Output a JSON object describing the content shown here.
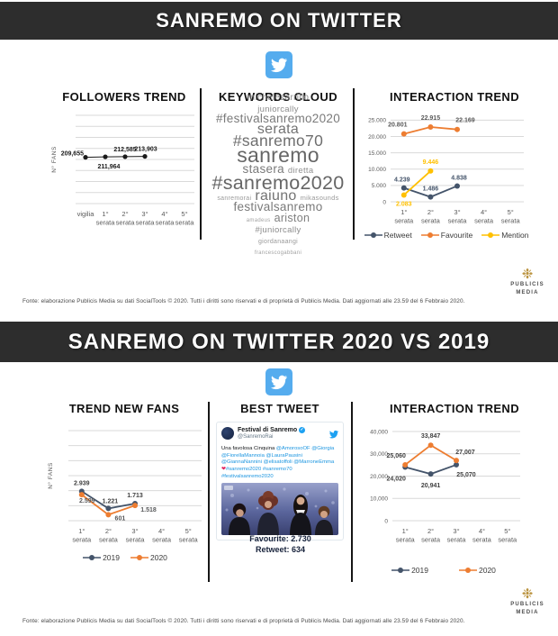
{
  "colors": {
    "header_bg": "#2d2d2d",
    "twitter_blue": "#55acee",
    "navy": "#44546a",
    "orange": "#ed7d31",
    "yellow": "#ffc000",
    "grid": "#d9d9d9"
  },
  "footer_note": "Fonte: elaborazione Publicis Media su dati SocialTools © 2020. Tutti i diritti sono riservati e di proprietà di Publicis Media. Dati aggiornati alle 23.59 del 6 Febbraio 2020.",
  "logo": {
    "line1": "PUBLICIS",
    "line2": "MEDIA"
  },
  "top": {
    "header": "SANREMO ON TWITTER",
    "panels": {
      "followers": {
        "title": "FOLLOWERS TREND"
      },
      "keywords": {
        "title": "KEYWORDS CLOUD",
        "rows": [
          [
            {
              "t": "michelezarrillo",
              "s": 10,
              "c": "#8c8c8c"
            }
          ],
          [
            {
              "t": "juniorcally",
              "s": 9.5,
              "c": "#8c8c8c"
            }
          ],
          [
            {
              "t": "#festivalsanremo2020",
              "s": 13.5,
              "c": "#7a7a7a"
            }
          ],
          [
            {
              "t": "serata",
              "s": 16,
              "c": "#737373"
            }
          ],
          [
            {
              "t": "#sanremo70",
              "s": 17.5,
              "c": "#6e6e6e"
            }
          ],
          [
            {
              "t": "sanremo",
              "s": 23,
              "c": "#666666"
            }
          ],
          [
            {
              "t": "stasera",
              "s": 13.5,
              "c": "#7a7a7a"
            },
            {
              "t": "diretta",
              "s": 9.5,
              "c": "#919191"
            }
          ],
          [
            {
              "t": "#sanremo2020",
              "s": 21.5,
              "c": "#666666"
            }
          ],
          [
            {
              "t": "sanremorai",
              "s": 7,
              "c": "#9a9a9a"
            },
            {
              "t": "raiuno",
              "s": 16,
              "c": "#737373"
            },
            {
              "t": "mikasounds",
              "s": 7.5,
              "c": "#9a9a9a"
            }
          ],
          [
            {
              "t": "festivalsanremo",
              "s": 13.5,
              "c": "#7a7a7a"
            }
          ],
          [
            {
              "t": "amadeus",
              "s": 6,
              "c": "#a3a3a3"
            },
            {
              "t": "ariston",
              "s": 12.5,
              "c": "#7f7f7f"
            }
          ],
          [
            {
              "t": "#juniorcally",
              "s": 9.5,
              "c": "#8c8c8c"
            }
          ],
          [
            {
              "t": "giordanaangi",
              "s": 7,
              "c": "#9a9a9a"
            }
          ],
          [
            {
              "t": "francescogabbani",
              "s": 6,
              "c": "#a3a3a3"
            }
          ]
        ]
      },
      "interaction": {
        "title": "INTERACTION TREND"
      }
    }
  },
  "bottom": {
    "header": "SANREMO ON TWITTER 2020 VS 2019",
    "panels": {
      "newfans": {
        "title": "TREND NEW FANS"
      },
      "best_tweet": {
        "title": "BEST TWEET",
        "account_name": "Festival di Sanremo",
        "account_handle": "@SanremoRai",
        "text_segments": [
          {
            "t": "Una favolosa Cinquina ",
            "style": ""
          },
          {
            "t": "@AmorosoOF @Giorgia @FiorellaMannoia @LauraPausini @GiannaNannini @elisatoffoli @MarroneEmma ",
            "style": "link"
          },
          {
            "t": "❤",
            "style": "heart"
          },
          {
            "t": "#sanremo2020 #sanremo70 #festivalsanremo2020",
            "style": "link"
          }
        ],
        "favourite_label": "Favourite: 2.730",
        "retweet_label": "Retweet: 634"
      },
      "interaction": {
        "title": "INTERACTION TREND"
      }
    }
  },
  "chart_data": [
    {
      "type": "line",
      "title": "FOLLOWERS TREND",
      "ylabel": "N° FANS",
      "categories": [
        [
          "vigilia"
        ],
        [
          "1°",
          "serata"
        ],
        [
          "2°",
          "serata"
        ],
        [
          "3°",
          "serata"
        ],
        [
          "4°",
          "serata"
        ],
        [
          "5°",
          "serata"
        ]
      ],
      "ylim": [
        0,
        400000
      ],
      "grid_step": 50000,
      "legend": false,
      "series": [
        {
          "name": "N° Fans",
          "color": "#1a1a1a",
          "lw": 1,
          "r": 2.6,
          "values": [
            209655,
            211964,
            212585,
            213903,
            null,
            null
          ],
          "labels": [
            "209,655",
            "211,964",
            "212,585",
            "213,903",
            null,
            null
          ],
          "offsets": [
            [
              -2,
              -2,
              "end"
            ],
            [
              4,
              13,
              "middle"
            ],
            [
              0,
              -6,
              "middle"
            ],
            [
              1,
              -6,
              "middle"
            ]
          ],
          "label_color": "#1a1a1a"
        }
      ]
    },
    {
      "type": "line",
      "title": "INTERACTION TREND",
      "categories": [
        [
          "1°",
          "serata"
        ],
        [
          "2°",
          "serata"
        ],
        [
          "3°",
          "serata"
        ],
        [
          "4°",
          "serata"
        ],
        [
          "5°",
          "serata"
        ]
      ],
      "ylim": [
        0,
        26500
      ],
      "grid_step": 5000,
      "legend": true,
      "yticks": [
        {
          "v": 25000,
          "t": "25.000"
        },
        {
          "v": 20000,
          "t": "20.000"
        },
        {
          "v": 15000,
          "t": "15.000"
        },
        {
          "v": 10000,
          "t": "10.000"
        },
        {
          "v": 5000,
          "t": "5.000"
        },
        {
          "v": 0,
          "t": "0"
        }
      ],
      "series": [
        {
          "name": "Retweet",
          "color": "#44546a",
          "values": [
            4239,
            1486,
            4838,
            null,
            null
          ],
          "labels": [
            "4.239",
            "1.486",
            "4.838"
          ],
          "offsets": [
            [
              -2,
              -7,
              "middle"
            ],
            [
              0,
              -7,
              "middle"
            ],
            [
              2,
              -7,
              "middle"
            ]
          ],
          "label_color": "#44546a"
        },
        {
          "name": "Favourite",
          "color": "#ed7d31",
          "values": [
            20801,
            22915,
            22169,
            null,
            null
          ],
          "labels": [
            "20.801",
            "22.915",
            "22.169"
          ],
          "offsets": [
            [
              -7,
              -8,
              "middle"
            ],
            [
              0,
              -8,
              "middle"
            ],
            [
              9,
              -8,
              "middle"
            ]
          ],
          "label_color": "#595959"
        },
        {
          "name": "Mention",
          "color": "#ffc000",
          "values": [
            2083,
            9446,
            null,
            null,
            null
          ],
          "labels": [
            "2.083",
            "9.446"
          ],
          "offsets": [
            [
              0,
              12,
              "middle"
            ],
            [
              0,
              -8,
              "middle"
            ]
          ],
          "label_color": "#ffc000"
        }
      ]
    },
    {
      "type": "line",
      "title": "TREND NEW FANS",
      "ylabel": "N° FANS",
      "categories": [
        [
          "1°",
          "serata"
        ],
        [
          "2°",
          "serata"
        ],
        [
          "3°",
          "serata"
        ],
        [
          "4°",
          "serata"
        ],
        [
          "5°",
          "serata"
        ]
      ],
      "ylim": [
        0,
        9000
      ],
      "grid_step": 1500,
      "legend": true,
      "series": [
        {
          "name": "2019",
          "color": "#44546a",
          "values": [
            2939,
            1221,
            1713,
            null,
            null
          ],
          "labels": [
            "2.939",
            "1.221",
            "1.713"
          ],
          "offsets": [
            [
              0,
              -7,
              "middle"
            ],
            [
              2,
              -6,
              "middle"
            ],
            [
              0,
              -7,
              "middle"
            ]
          ],
          "label_color": "#404040"
        },
        {
          "name": "2020",
          "color": "#ed7d31",
          "values": [
            2599,
            601,
            1518,
            null,
            null
          ],
          "labels": [
            "2.599",
            "601",
            "1.518"
          ],
          "offsets": [
            [
              6,
              9,
              "middle"
            ],
            [
              13,
              6,
              "middle"
            ],
            [
              15,
              7,
              "middle"
            ]
          ],
          "label_color": "#58595b"
        }
      ]
    },
    {
      "type": "line",
      "title": "INTERACTION TREND",
      "categories": [
        [
          "1°",
          "serata"
        ],
        [
          "2°",
          "serata"
        ],
        [
          "3°",
          "serata"
        ],
        [
          "4°",
          "serata"
        ],
        [
          "5°",
          "serata"
        ]
      ],
      "ylim": [
        0,
        42000
      ],
      "grid_step": 10000,
      "legend": true,
      "yticks": [
        {
          "v": 40000,
          "t": "40,000"
        },
        {
          "v": 30000,
          "t": "30,000"
        },
        {
          "v": 20000,
          "t": "20,000"
        },
        {
          "v": 10000,
          "t": "10,000"
        },
        {
          "v": 0,
          "t": "0"
        }
      ],
      "series": [
        {
          "name": "2019",
          "color": "#44546a",
          "values": [
            24020,
            20941,
            25070,
            null,
            null
          ],
          "labels": [
            "24,020",
            "20,941",
            "25,070"
          ],
          "offsets": [
            [
              -10,
              15,
              "middle"
            ],
            [
              0,
              15,
              "middle"
            ],
            [
              11,
              13,
              "middle"
            ]
          ],
          "label_color": "#404040"
        },
        {
          "name": "2020",
          "color": "#ed7d31",
          "values": [
            25060,
            33847,
            27007,
            null,
            null
          ],
          "labels": [
            "25,060",
            "33,847",
            "27,007"
          ],
          "offsets": [
            [
              -10,
              -8,
              "middle"
            ],
            [
              0,
              -8,
              "middle"
            ],
            [
              10,
              -7,
              "middle"
            ]
          ],
          "label_color": "#404040"
        }
      ]
    }
  ]
}
